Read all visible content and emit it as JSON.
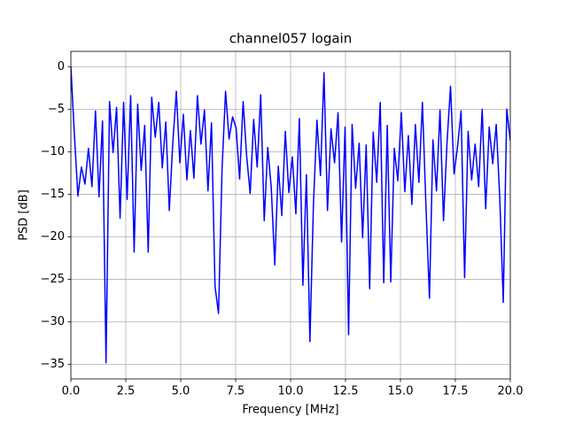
{
  "chart_data": {
    "type": "line",
    "title": "channel057 logain",
    "xlabel": "Frequency [MHz]",
    "ylabel": "PSD [dB]",
    "x": [
      0,
      0.16,
      0.32,
      0.48,
      0.64,
      0.8,
      0.96,
      1.12,
      1.28,
      1.44,
      1.6,
      1.76,
      1.92,
      2.08,
      2.24,
      2.4,
      2.56,
      2.72,
      2.88,
      3.04,
      3.2,
      3.36,
      3.52,
      3.68,
      3.84,
      4,
      4.16,
      4.32,
      4.48,
      4.64,
      4.8,
      4.96,
      5.12,
      5.28,
      5.44,
      5.6,
      5.76,
      5.92,
      6.08,
      6.24,
      6.4,
      6.56,
      6.72,
      6.88,
      7.04,
      7.2,
      7.36,
      7.52,
      7.68,
      7.84,
      8,
      8.16,
      8.32,
      8.48,
      8.64,
      8.8,
      8.96,
      9.12,
      9.28,
      9.44,
      9.6,
      9.76,
      9.92,
      10.08,
      10.24,
      10.4,
      10.56,
      10.72,
      10.88,
      11.04,
      11.2,
      11.36,
      11.52,
      11.68,
      11.84,
      12,
      12.16,
      12.32,
      12.48,
      12.64,
      12.8,
      12.96,
      13.12,
      13.28,
      13.44,
      13.6,
      13.76,
      13.92,
      14.08,
      14.24,
      14.4,
      14.56,
      14.72,
      14.88,
      15.04,
      15.2,
      15.36,
      15.52,
      15.68,
      15.84,
      16,
      16.16,
      16.32,
      16.48,
      16.64,
      16.8,
      16.96,
      17.12,
      17.28,
      17.44,
      17.6,
      17.76,
      17.92,
      18.08,
      18.24,
      18.4,
      18.56,
      18.72,
      18.88,
      19.04,
      19.2,
      19.36,
      19.52,
      19.68,
      19.84,
      20
    ],
    "series": [
      {
        "color": "#0000ff",
        "values": [
          0,
          -8,
          -15.2,
          -11.8,
          -13.8,
          -9.6,
          -14.1,
          -5.2,
          -15.3,
          -6.4,
          -34.8,
          -4.1,
          -10.1,
          -4.8,
          -17.8,
          -4.2,
          -15.6,
          -3.4,
          -21.8,
          -4.4,
          -12.2,
          -6.9,
          -21.8,
          -3.6,
          -8.3,
          -4.2,
          -11.9,
          -6.5,
          -16.9,
          -8.9,
          -2.9,
          -11.3,
          -5.6,
          -13.3,
          -7.5,
          -13.1,
          -3.4,
          -9.1,
          -5.1,
          -14.6,
          -6.6,
          -25.8,
          -29,
          -12.1,
          -2.9,
          -8.5,
          -5.9,
          -7.2,
          -13.2,
          -4.1,
          -10.5,
          -14.9,
          -6.2,
          -11.8,
          -3.3,
          -18.1,
          -9.5,
          -14.2,
          -23.3,
          -11.7,
          -17.5,
          -7.6,
          -14.8,
          -10.6,
          -17.3,
          -6.1,
          -25.7,
          -12.7,
          -32.3,
          -16.2,
          -6.3,
          -12.8,
          -0.7,
          -16.9,
          -7.3,
          -11.3,
          -5.4,
          -20.6,
          -7.1,
          -31.5,
          -6.8,
          -14.3,
          -9,
          -20.1,
          -9.2,
          -26.1,
          -7.7,
          -13.6,
          -4.2,
          -25.4,
          -6.9,
          -25.3,
          -9.6,
          -13.4,
          -5.4,
          -14.7,
          -8.1,
          -16.2,
          -6.8,
          -13.6,
          -4.2,
          -16.3,
          -27.2,
          -8.6,
          -14.6,
          -5.1,
          -18.1,
          -8.9,
          -2.3,
          -12.6,
          -9.4,
          -5.2,
          -24.8,
          -7.6,
          -13.3,
          -9.1,
          -14.1,
          -5,
          -16.7,
          -7.1,
          -11.4,
          -6.8,
          -15.4,
          -27.7,
          -5,
          -8.7
        ]
      }
    ],
    "xlim": [
      0,
      20
    ],
    "xticks": [
      {
        "value": 0,
        "label": "0.0"
      },
      2.5,
      {
        "value": 5,
        "label": "5.0"
      },
      7.5,
      {
        "value": 10,
        "label": "10.0"
      },
      12.5,
      {
        "value": 15,
        "label": "15.0"
      },
      17.5,
      {
        "value": 20,
        "label": "20.0"
      }
    ],
    "ylim": [
      -36.7,
      1.8
    ],
    "yticks": [
      {
        "value": -35,
        "label": "−35"
      },
      {
        "value": -30,
        "label": "−30"
      },
      {
        "value": -25,
        "label": "−25"
      },
      {
        "value": -20,
        "label": "−20"
      },
      {
        "value": -15,
        "label": "−15"
      },
      {
        "value": -10,
        "label": "−10"
      },
      {
        "value": -5,
        "label": "−5"
      },
      0
    ],
    "grid": true
  }
}
